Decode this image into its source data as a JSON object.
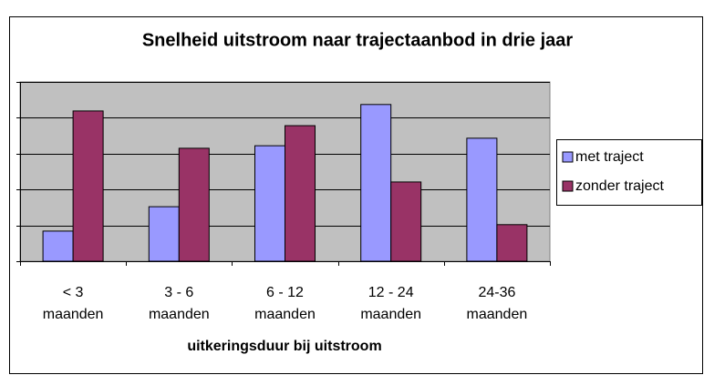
{
  "chart_data": {
    "type": "bar",
    "title": "Snelheid uitstroom naar trajectaanbod in drie jaar",
    "x_label": "uitkeringsduur bij uitstroom",
    "categories": [
      "< 3 maanden",
      "3 - 6 maanden",
      "6 - 12 maanden",
      "12 - 24 maanden",
      "24-36 maanden"
    ],
    "series": [
      {
        "name": "met traject",
        "color": "#9999ff",
        "values": [
          0.84,
          1.52,
          3.22,
          4.37,
          3.43
        ]
      },
      {
        "name": "zonder traject",
        "color": "#993366",
        "values": [
          4.19,
          3.15,
          3.78,
          2.21,
          1.02
        ]
      }
    ],
    "ylim": [
      0,
      5
    ],
    "yticks": [
      0,
      1,
      2,
      3,
      4,
      5
    ],
    "grid": true,
    "legend": "right"
  }
}
